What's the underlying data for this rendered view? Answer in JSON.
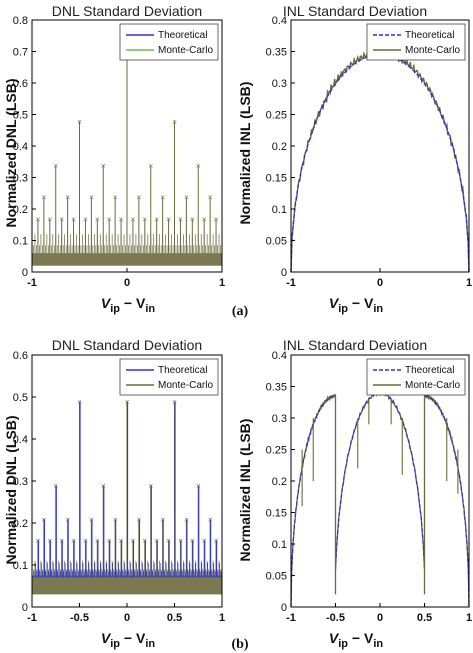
{
  "colors": {
    "theoretical": "#2a33d6",
    "montecarlo_a": "#6fb85a",
    "montecarlo_olive": "#6b6a3c",
    "axis": "#000000"
  },
  "panel_tags": [
    "(a)",
    "(b)"
  ],
  "chart_data": [
    {
      "id": "a-dnl",
      "type": "line",
      "title": "DNL Standard Deviation",
      "ylabel": "Normalized DNL (LSB)",
      "xlabel_main": "V",
      "xlabel_sub1": "ip",
      "xlabel_mid": " − V",
      "xlabel_sub2": "in",
      "xlim": [
        -1,
        1
      ],
      "ylim": [
        0,
        0.8
      ],
      "xticks": [
        "-1",
        "0",
        "1"
      ],
      "xtick_values": [
        -1,
        0,
        1
      ],
      "yticks": [
        "0",
        "0.1",
        "0.2",
        "0.3",
        "0.4",
        "0.5",
        "0.6",
        "0.7",
        "0.8"
      ],
      "ytick_values": [
        0,
        0.1,
        0.2,
        0.3,
        0.4,
        0.5,
        0.6,
        0.7,
        0.8
      ],
      "legend": [
        "Theoretical",
        "Monte-Carlo"
      ],
      "legend_position": "top-right",
      "band": [
        0.02,
        0.06
      ],
      "spikes": [
        {
          "x": 0,
          "y": 0.69
        },
        {
          "x": -0.5,
          "y": 0.48
        },
        {
          "x": 0.5,
          "y": 0.48
        },
        {
          "x": -0.75,
          "y": 0.34
        },
        {
          "x": -0.25,
          "y": 0.34
        },
        {
          "x": 0.25,
          "y": 0.34
        },
        {
          "x": 0.75,
          "y": 0.34
        },
        {
          "x": -0.875,
          "y": 0.24
        },
        {
          "x": -0.625,
          "y": 0.24
        },
        {
          "x": -0.375,
          "y": 0.24
        },
        {
          "x": -0.125,
          "y": 0.24
        },
        {
          "x": 0.125,
          "y": 0.24
        },
        {
          "x": 0.375,
          "y": 0.24
        },
        {
          "x": 0.625,
          "y": 0.24
        },
        {
          "x": 0.875,
          "y": 0.24
        },
        {
          "x": -0.9375,
          "y": 0.17
        },
        {
          "x": -0.8125,
          "y": 0.17
        },
        {
          "x": -0.6875,
          "y": 0.17
        },
        {
          "x": -0.5625,
          "y": 0.17
        },
        {
          "x": -0.4375,
          "y": 0.17
        },
        {
          "x": -0.3125,
          "y": 0.17
        },
        {
          "x": -0.1875,
          "y": 0.17
        },
        {
          "x": -0.0625,
          "y": 0.17
        },
        {
          "x": 0.0625,
          "y": 0.17
        },
        {
          "x": 0.1875,
          "y": 0.17
        },
        {
          "x": 0.3125,
          "y": 0.17
        },
        {
          "x": 0.4375,
          "y": 0.17
        },
        {
          "x": 0.5625,
          "y": 0.17
        },
        {
          "x": 0.6875,
          "y": 0.17
        },
        {
          "x": 0.8125,
          "y": 0.17
        },
        {
          "x": 0.9375,
          "y": 0.17
        }
      ],
      "mid_spike_level": 0.12,
      "low_spike_level": 0.085
    },
    {
      "id": "a-inl",
      "type": "line",
      "title": "INL Standard Deviation",
      "ylabel": "Normalized INL (LSB)",
      "xlabel_main": "V",
      "xlabel_sub1": "ip",
      "xlabel_mid": " − V",
      "xlabel_sub2": "in",
      "xlim": [
        -1,
        1
      ],
      "ylim": [
        0,
        0.4
      ],
      "xticks": [
        "-1",
        "0",
        "1"
      ],
      "xtick_values": [
        -1,
        0,
        1
      ],
      "yticks": [
        "0",
        "0.05",
        "0.1",
        "0.15",
        "0.2",
        "0.25",
        "0.3",
        "0.35",
        "0.4"
      ],
      "ytick_values": [
        0,
        0.05,
        0.1,
        0.15,
        0.2,
        0.25,
        0.3,
        0.35,
        0.4
      ],
      "legend": [
        "Theoretical",
        "Monte-Carlo"
      ],
      "legend_position": "top-right",
      "peak": 0.345
    },
    {
      "id": "b-dnl",
      "type": "line",
      "title": "DNL Standard Deviation",
      "ylabel": "Normalized DNL (LSB)",
      "xlabel_main": "V",
      "xlabel_sub1": "ip",
      "xlabel_mid": " − V",
      "xlabel_sub2": "in",
      "xlim": [
        -1,
        1
      ],
      "ylim": [
        0,
        0.6
      ],
      "xticks": [
        "-1",
        "-0.5",
        "0",
        "0.5",
        "1"
      ],
      "xtick_values": [
        -1,
        -0.5,
        0,
        0.5,
        1
      ],
      "yticks": [
        "0",
        "0.1",
        "0.2",
        "0.3",
        "0.4",
        "0.5",
        "0.6"
      ],
      "ytick_values": [
        0,
        0.1,
        0.2,
        0.3,
        0.4,
        0.5,
        0.6
      ],
      "legend": [
        "Theoretical",
        "Monte-Carlo"
      ],
      "legend_position": "top-right",
      "band": [
        0.03,
        0.07
      ],
      "spikes": [
        {
          "x": -0.5,
          "y": 0.49
        },
        {
          "x": 0,
          "y": 0.49
        },
        {
          "x": 0.5,
          "y": 0.49
        },
        {
          "x": -0.75,
          "y": 0.29
        },
        {
          "x": -0.25,
          "y": 0.29
        },
        {
          "x": 0.25,
          "y": 0.29
        },
        {
          "x": 0.75,
          "y": 0.29
        },
        {
          "x": -0.875,
          "y": 0.21
        },
        {
          "x": -0.625,
          "y": 0.21
        },
        {
          "x": -0.375,
          "y": 0.21
        },
        {
          "x": -0.125,
          "y": 0.21
        },
        {
          "x": 0.125,
          "y": 0.21
        },
        {
          "x": 0.375,
          "y": 0.21
        },
        {
          "x": 0.625,
          "y": 0.21
        },
        {
          "x": 0.875,
          "y": 0.21
        },
        {
          "x": -0.9375,
          "y": 0.16
        },
        {
          "x": -0.8125,
          "y": 0.16
        },
        {
          "x": -0.6875,
          "y": 0.16
        },
        {
          "x": -0.5625,
          "y": 0.16
        },
        {
          "x": -0.4375,
          "y": 0.16
        },
        {
          "x": -0.3125,
          "y": 0.16
        },
        {
          "x": -0.1875,
          "y": 0.16
        },
        {
          "x": -0.0625,
          "y": 0.16
        },
        {
          "x": 0.0625,
          "y": 0.16
        },
        {
          "x": 0.1875,
          "y": 0.16
        },
        {
          "x": 0.3125,
          "y": 0.16
        },
        {
          "x": 0.4375,
          "y": 0.16
        },
        {
          "x": 0.5625,
          "y": 0.16
        },
        {
          "x": 0.6875,
          "y": 0.16
        },
        {
          "x": 0.8125,
          "y": 0.16
        },
        {
          "x": 0.9375,
          "y": 0.16
        }
      ],
      "mid_spike_level": 0.11,
      "low_spike_level": 0.09
    },
    {
      "id": "b-inl",
      "type": "line",
      "title": "INL Standard Deviation",
      "ylabel": "Normalized INL (LSB)",
      "xlabel_main": "V",
      "xlabel_sub1": "ip",
      "xlabel_mid": " − V",
      "xlabel_sub2": "in",
      "xlim": [
        -1,
        1
      ],
      "ylim": [
        0,
        0.4
      ],
      "xticks": [
        "-1",
        "-0.5",
        "0",
        "0.5",
        "1"
      ],
      "xtick_values": [
        -1,
        -0.5,
        0,
        0.5,
        1
      ],
      "yticks": [
        "0",
        "0.05",
        "0.1",
        "0.15",
        "0.2",
        "0.25",
        "0.3",
        "0.35",
        "0.4"
      ],
      "ytick_values": [
        0,
        0.05,
        0.1,
        0.15,
        0.2,
        0.25,
        0.3,
        0.35,
        0.4
      ],
      "legend": [
        "Theoretical",
        "Monte-Carlo"
      ],
      "legend_position": "top-right",
      "segment_peaks": [
        0.335,
        0.34,
        0.335
      ],
      "breakpoints": [
        -0.5,
        0.5
      ]
    }
  ]
}
